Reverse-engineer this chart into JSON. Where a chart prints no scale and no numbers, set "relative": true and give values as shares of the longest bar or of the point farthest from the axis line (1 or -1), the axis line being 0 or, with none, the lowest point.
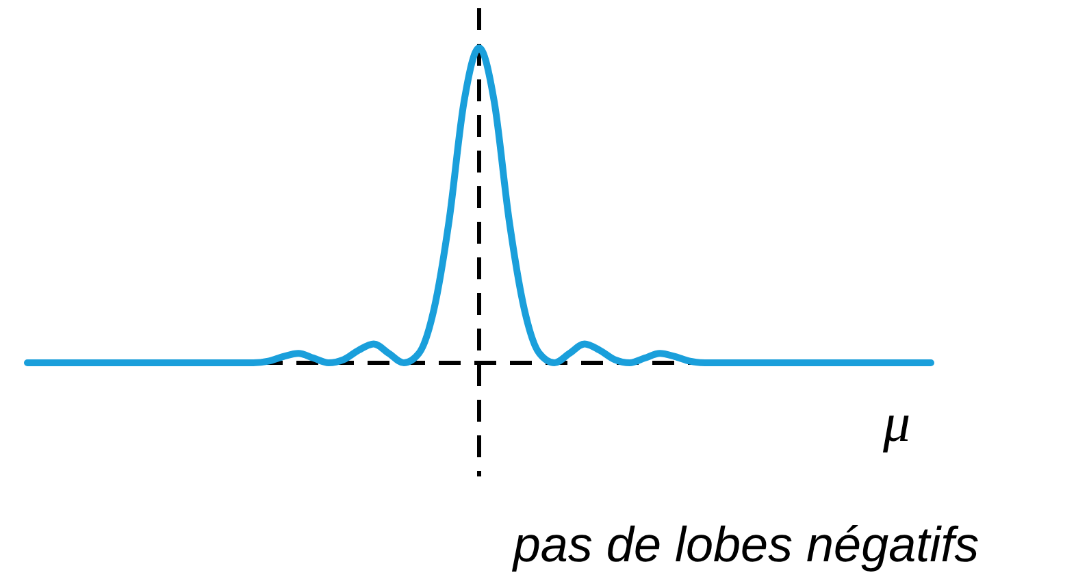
{
  "chart_data": {
    "type": "line",
    "relative": true,
    "xlabel": "μ",
    "annotations": [
      "pas de lobes négatifs"
    ],
    "marker": "none",
    "line_style": "solid",
    "categories": [
      null,
      null,
      null,
      null,
      null,
      null,
      null,
      null,
      null,
      null,
      null,
      null,
      null,
      null,
      null,
      null,
      null,
      null,
      null,
      null,
      null,
      null,
      null,
      null,
      null,
      null,
      null,
      null,
      null,
      null,
      null,
      null,
      null,
      null,
      null,
      null,
      null,
      null,
      null,
      null,
      null,
      null,
      null,
      null,
      null,
      null,
      null,
      null,
      null,
      null,
      null,
      null,
      null,
      null,
      null,
      null,
      null,
      null,
      null,
      null,
      null
    ],
    "series": [
      {
        "color": "#1a9fdb",
        "values": [
          0,
          0,
          0,
          0,
          0,
          0,
          0,
          0,
          0,
          0,
          0,
          0,
          0,
          0,
          0,
          0,
          0.005,
          0.02,
          0.03,
          0.015,
          0,
          0.01,
          0.04,
          0.06,
          0.03,
          0,
          0.03,
          0.17,
          0.45,
          0.83,
          1,
          0.83,
          0.45,
          0.17,
          0.03,
          0,
          0.03,
          0.06,
          0.04,
          0.01,
          0,
          0.015,
          0.03,
          0.02,
          0.005,
          0,
          0,
          0,
          0,
          0,
          0,
          0,
          0,
          0,
          0,
          0,
          0,
          0,
          0,
          0,
          0
        ]
      }
    ]
  }
}
